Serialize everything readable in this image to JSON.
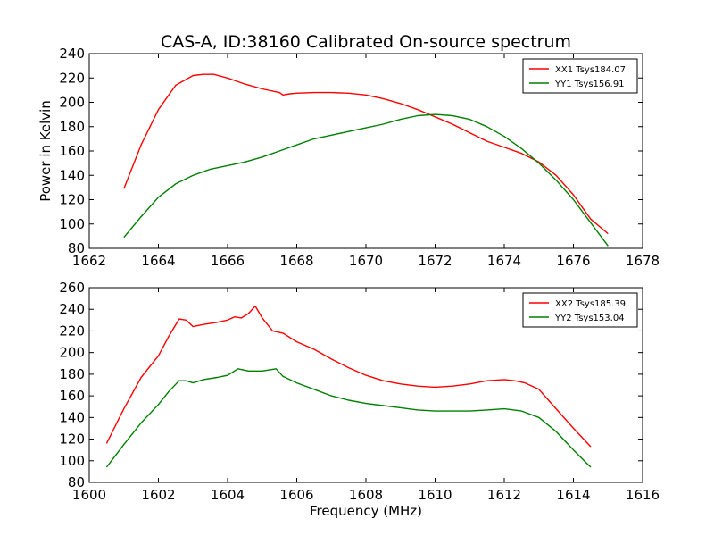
{
  "title": "CAS-A, ID:38160 Calibrated On-source spectrum",
  "chart_data": [
    {
      "type": "line",
      "title": "CAS-A, ID:38160 Calibrated On-source spectrum",
      "xlabel": "",
      "ylabel": "Power in Kelvin",
      "xlim": [
        1662,
        1678
      ],
      "ylim": [
        80,
        240
      ],
      "xticks": [
        1662,
        1664,
        1666,
        1668,
        1670,
        1672,
        1674,
        1676,
        1678
      ],
      "yticks": [
        80,
        100,
        120,
        140,
        160,
        180,
        200,
        220,
        240
      ],
      "grid": false,
      "legend_position": "top-right",
      "series": [
        {
          "name": "XX1 Tsys184.07",
          "color": "#ff0000",
          "x": [
            1663.0,
            1663.5,
            1664.0,
            1664.5,
            1665.0,
            1665.3,
            1665.6,
            1666.0,
            1666.5,
            1667.0,
            1667.5,
            1667.6,
            1667.8,
            1668.0,
            1668.5,
            1669.0,
            1669.5,
            1670.0,
            1670.5,
            1671.0,
            1671.5,
            1672.0,
            1672.5,
            1673.0,
            1673.5,
            1674.0,
            1674.5,
            1675.0,
            1675.5,
            1676.0,
            1676.5,
            1677.0
          ],
          "y": [
            129,
            165,
            194,
            214,
            222,
            223,
            223,
            220,
            215,
            211,
            208,
            206,
            207,
            207.5,
            208,
            208,
            207.5,
            206,
            203,
            199,
            194,
            188,
            182,
            175,
            168,
            163,
            158,
            151,
            140,
            124,
            104,
            92
          ]
        },
        {
          "name": "YY1 Tsys156.91",
          "color": "#008000",
          "x": [
            1663.0,
            1663.5,
            1664.0,
            1664.5,
            1665.0,
            1665.5,
            1666.0,
            1666.5,
            1667.0,
            1667.5,
            1668.0,
            1668.5,
            1669.0,
            1669.5,
            1670.0,
            1670.5,
            1671.0,
            1671.5,
            1672.0,
            1672.5,
            1673.0,
            1673.5,
            1674.0,
            1674.5,
            1675.0,
            1675.5,
            1676.0,
            1676.5,
            1677.0
          ],
          "y": [
            89,
            106,
            122,
            133,
            140,
            145,
            148,
            151,
            155,
            160,
            165,
            170,
            173,
            176,
            179,
            182,
            186,
            189,
            190,
            189,
            186,
            180,
            172,
            162,
            150,
            136,
            120,
            101,
            82
          ]
        }
      ]
    },
    {
      "type": "line",
      "title": "",
      "xlabel": "Frequency (MHz)",
      "ylabel": "",
      "xlim": [
        1600,
        1616
      ],
      "ylim": [
        80,
        260
      ],
      "xticks": [
        1600,
        1602,
        1604,
        1606,
        1608,
        1610,
        1612,
        1614,
        1616
      ],
      "yticks": [
        80,
        100,
        120,
        140,
        160,
        180,
        200,
        220,
        240,
        260
      ],
      "grid": false,
      "legend_position": "top-right",
      "series": [
        {
          "name": "XX2 Tsys185.39",
          "color": "#ff0000",
          "x": [
            1600.5,
            1601.0,
            1601.5,
            1602.0,
            1602.3,
            1602.6,
            1602.8,
            1603.0,
            1603.3,
            1603.7,
            1604.0,
            1604.2,
            1604.4,
            1604.6,
            1604.8,
            1605.0,
            1605.3,
            1605.6,
            1606.0,
            1606.5,
            1607.0,
            1607.5,
            1608.0,
            1608.5,
            1609.0,
            1609.5,
            1610.0,
            1610.5,
            1611.0,
            1611.5,
            1612.0,
            1612.3,
            1612.6,
            1613.0,
            1613.5,
            1614.0,
            1614.5
          ],
          "y": [
            116,
            148,
            177,
            197,
            215,
            231,
            230,
            224,
            226,
            228,
            230,
            233,
            232,
            236,
            243,
            232,
            220,
            218,
            210,
            203,
            194,
            186,
            179,
            174,
            171,
            169,
            168,
            169,
            171,
            174,
            175,
            174,
            172,
            166,
            148,
            130,
            113
          ]
        },
        {
          "name": "YY2 Tsys153.04",
          "color": "#008000",
          "x": [
            1600.5,
            1601.0,
            1601.5,
            1602.0,
            1602.3,
            1602.6,
            1602.8,
            1603.0,
            1603.3,
            1603.7,
            1604.0,
            1604.3,
            1604.6,
            1605.0,
            1605.4,
            1605.6,
            1606.0,
            1606.5,
            1607.0,
            1607.5,
            1608.0,
            1608.5,
            1609.0,
            1609.5,
            1610.0,
            1610.5,
            1611.0,
            1611.5,
            1612.0,
            1612.5,
            1613.0,
            1613.5,
            1614.0,
            1614.5
          ],
          "y": [
            94,
            115,
            135,
            152,
            164,
            174,
            174,
            172,
            175,
            177,
            179,
            185,
            183,
            183,
            185,
            178,
            172,
            166,
            160,
            156,
            153,
            151,
            149,
            147,
            146,
            146,
            146,
            147,
            148,
            146,
            140,
            127,
            110,
            94
          ]
        }
      ]
    }
  ]
}
